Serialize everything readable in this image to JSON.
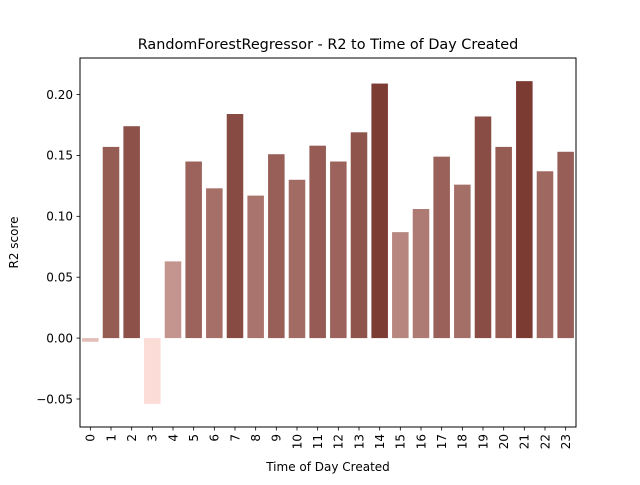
{
  "chart_data": {
    "type": "bar",
    "title": "RandomForestRegressor - R2 to Time of Day Created",
    "xlabel": "Time of Day Created",
    "ylabel": "R2 score",
    "categories": [
      "0",
      "1",
      "2",
      "3",
      "4",
      "5",
      "6",
      "7",
      "8",
      "9",
      "10",
      "11",
      "12",
      "13",
      "14",
      "15",
      "16",
      "17",
      "18",
      "19",
      "20",
      "21",
      "22",
      "23"
    ],
    "values": [
      -0.003,
      0.157,
      0.174,
      -0.054,
      0.063,
      0.145,
      0.123,
      0.184,
      0.117,
      0.151,
      0.13,
      0.158,
      0.145,
      0.169,
      0.209,
      0.087,
      0.106,
      0.149,
      0.126,
      0.182,
      0.157,
      0.211,
      0.137,
      0.153
    ],
    "ylim": [
      -0.073,
      0.23
    ],
    "yticks": [
      -0.05,
      0.0,
      0.05,
      0.1,
      0.15,
      0.2
    ],
    "ytick_labels": [
      "−0.05",
      "0.00",
      "0.05",
      "0.10",
      "0.15",
      "0.20"
    ],
    "grid": false,
    "legend": "none",
    "color_light": "#fcdcd6",
    "color_dark": "#7b3b33"
  }
}
